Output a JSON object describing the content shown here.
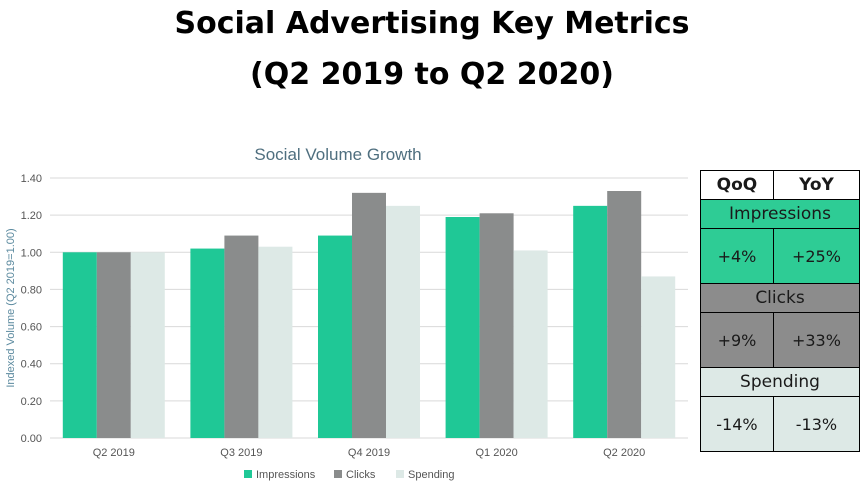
{
  "title": {
    "line1": "Social Advertising Key Metrics",
    "line2": "(Q2 2019 to Q2 2020)"
  },
  "colors": {
    "impressions": "#1fc896",
    "clicks": "#8a8c8c",
    "spending": "#dde9e6",
    "table_impressions": "#2ecc95",
    "table_clicks": "#8c8c8c",
    "table_spending": "#dde9e6"
  },
  "chart_data": {
    "type": "bar",
    "title": "Social Volume Growth",
    "xlabel": "",
    "ylabel": "Indexed Volume (Q2 2019=1.00)",
    "ylim": [
      0,
      1.4
    ],
    "yticks": [
      "0.00",
      "0.20",
      "0.40",
      "0.60",
      "0.80",
      "1.00",
      "1.20",
      "1.40"
    ],
    "grid": true,
    "legend_position": "bottom",
    "categories": [
      "Q2 2019",
      "Q3 2019",
      "Q4 2019",
      "Q1 2020",
      "Q2 2020"
    ],
    "series": [
      {
        "name": "Impressions",
        "values": [
          1.0,
          1.02,
          1.09,
          1.19,
          1.25
        ]
      },
      {
        "name": "Clicks",
        "values": [
          1.0,
          1.09,
          1.32,
          1.21,
          1.33
        ]
      },
      {
        "name": "Spending",
        "values": [
          1.0,
          1.03,
          1.25,
          1.01,
          0.87
        ]
      }
    ]
  },
  "table": {
    "headers": [
      "QoQ",
      "YoY"
    ],
    "rows": [
      {
        "metric": "Impressions",
        "qoq": "+4%",
        "yoy": "+25%"
      },
      {
        "metric": "Clicks",
        "qoq": "+9%",
        "yoy": "+33%"
      },
      {
        "metric": "Spending",
        "qoq": "-14%",
        "yoy": "-13%"
      }
    ]
  }
}
